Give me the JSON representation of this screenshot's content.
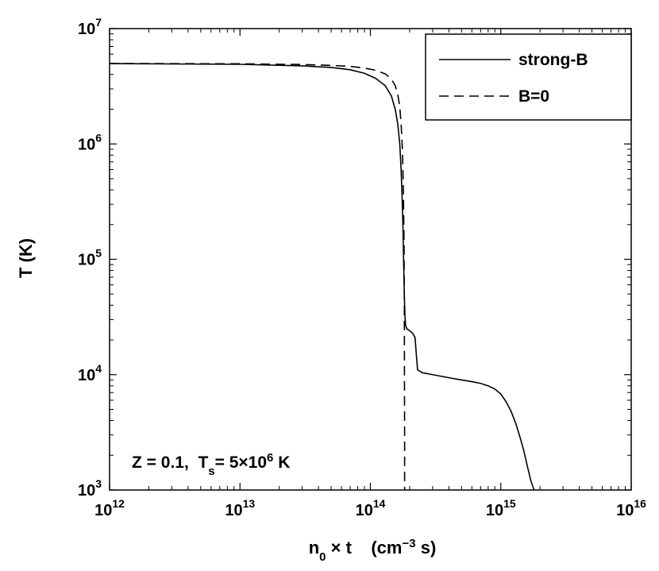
{
  "chart_data": {
    "type": "line",
    "title": "",
    "xscale": "log",
    "yscale": "log",
    "xlim": [
      1000000000000.0,
      1e+16
    ],
    "ylim": [
      1000.0,
      10000000.0
    ],
    "grid": false,
    "legend_position": "top-right",
    "xlabel": {
      "base": "n",
      "sub": "0",
      "mid": " × t    (cm",
      "sup": "−3",
      "end": " s)"
    },
    "ylabel": "T (K)",
    "x_ticks": [
      {
        "value": 1000000000000.0,
        "base": "10",
        "exp": "12"
      },
      {
        "value": 10000000000000.0,
        "base": "10",
        "exp": "13"
      },
      {
        "value": 100000000000000.0,
        "base": "10",
        "exp": "14"
      },
      {
        "value": 1000000000000000.0,
        "base": "10",
        "exp": "15"
      },
      {
        "value": 1e+16,
        "base": "10",
        "exp": "16"
      }
    ],
    "y_ticks": [
      {
        "value": 1000.0,
        "base": "10",
        "exp": "3"
      },
      {
        "value": 10000.0,
        "base": "10",
        "exp": "4"
      },
      {
        "value": 100000.0,
        "base": "10",
        "exp": "5"
      },
      {
        "value": 1000000.0,
        "base": "10",
        "exp": "6"
      },
      {
        "value": 10000000.0,
        "base": "10",
        "exp": "7"
      }
    ],
    "annotation": {
      "pre": "Z = 0.1,  T",
      "sub": "s",
      "mid": "= 5×10",
      "sup": "6",
      "end": " K"
    },
    "series": [
      {
        "name": "strong-B",
        "style": "solid",
        "color": "#000000",
        "x": [
          1000000000000.0,
          10000000000000.0,
          30000000000000.0,
          50000000000000.0,
          70000000000000.0,
          90000000000000.0,
          110000000000000.0,
          130000000000000.0,
          145000000000000.0,
          155000000000000.0,
          162000000000000.0,
          168000000000000.0,
          172000000000000.0,
          175000000000000.0,
          178000000000000.0,
          180000000000000.0,
          182000000000000.0,
          184000000000000.0,
          186000000000000.0,
          190000000000000.0,
          200000000000000.0,
          210000000000000.0,
          220000000000000.0,
          225000000000000.0,
          230000000000000.0,
          250000000000000.0,
          300000000000000.0,
          400000000000000.0,
          500000000000000.0,
          600000000000000.0,
          700000000000000.0,
          800000000000000.0,
          900000000000000.0,
          1000000000000000.0,
          1100000000000000.0,
          1200000000000000.0,
          1300000000000000.0,
          1400000000000000.0,
          1500000000000000.0,
          1600000000000000.0,
          1700000000000000.0,
          1800000000000000.0
        ],
        "y": [
          4970000.0,
          4900000.0,
          4750000.0,
          4600000.0,
          4400000.0,
          4100000.0,
          3700000.0,
          3200000.0,
          2600000.0,
          2000000.0,
          1500000.0,
          1000000.0,
          600000.0,
          350000.0,
          180000.0,
          90000.0,
          50000.0,
          33000.0,
          27000.0,
          25000.0,
          24000.0,
          23000.0,
          21000.0,
          15000.0,
          11000.0,
          10400.0,
          10000.0,
          9400.0,
          9000.0,
          8700.0,
          8400.0,
          8000.0,
          7500.0,
          6800.0,
          5800.0,
          4800.0,
          3800.0,
          2900.0,
          2200.0,
          1600.0,
          1200.0,
          1000.0
        ]
      },
      {
        "name": "B=0",
        "style": "dashed",
        "color": "#000000",
        "x": [
          1000000000000.0,
          10000000000000.0,
          30000000000000.0,
          50000000000000.0,
          70000000000000.0,
          90000000000000.0,
          110000000000000.0,
          130000000000000.0,
          145000000000000.0,
          155000000000000.0,
          162000000000000.0,
          168000000000000.0,
          172000000000000.0,
          176000000000000.0,
          179000000000000.0,
          181000000000000.0,
          182000000000000.0,
          182500000000000.0,
          183000000000000.0,
          183000000000000.0
        ],
        "y": [
          4980000.0,
          4950000.0,
          4880000.0,
          4800000.0,
          4700000.0,
          4550000.0,
          4350000.0,
          4050000.0,
          3650000.0,
          3200000.0,
          2700000.0,
          2100000.0,
          1500000.0,
          900000.0,
          400000.0,
          150000.0,
          50000.0,
          10000.0,
          3000.0,
          1000.0
        ]
      }
    ]
  }
}
